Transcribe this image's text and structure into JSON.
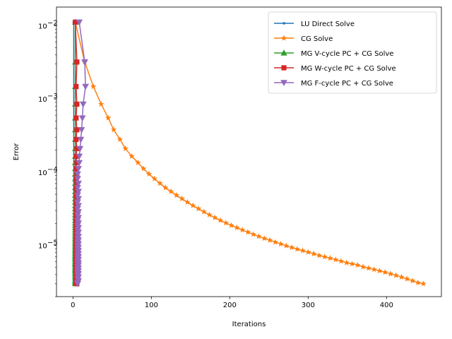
{
  "chart_data": {
    "type": "line",
    "xlabel": "Iterations",
    "ylabel": "Error",
    "y_scale": "log",
    "xlim": [
      -21,
      470
    ],
    "ylim": [
      2e-06,
      0.018
    ],
    "x_ticks": [
      0,
      100,
      200,
      300,
      400
    ],
    "x_tick_labels": [
      "0",
      "100",
      "200",
      "300",
      "400"
    ],
    "y_ticks": [
      1e-05,
      0.0001,
      0.001,
      0.01
    ],
    "y_tick_labels": [
      "10",
      "10",
      "10",
      "10"
    ],
    "y_tick_exponents": [
      "−5",
      "−4",
      "−3",
      "−2"
    ],
    "grid": false,
    "legend_position": "top-right",
    "series": [
      {
        "name": "LU Direct Solve",
        "color": "#1f77b4",
        "marker": "point",
        "points": [
          [
            1,
            0.0112
          ],
          [
            1,
            3e-06
          ]
        ]
      },
      {
        "name": "CG Solve",
        "color": "#ff7f0e",
        "marker": "star",
        "points": [
          [
            3,
            0.0112
          ],
          [
            15,
            0.0032
          ],
          [
            26,
            0.00148
          ],
          [
            36,
            0.00085
          ],
          [
            45,
            0.00055
          ],
          [
            52,
            0.00038
          ],
          [
            60,
            0.00028
          ],
          [
            67,
            0.00021
          ],
          [
            75,
            0.000165
          ],
          [
            83,
            0.000135
          ],
          [
            90,
            0.000112
          ],
          [
            97,
            9.45e-05
          ],
          [
            104,
            8.15e-05
          ],
          [
            111,
            7.05e-05
          ],
          [
            118,
            6.15e-05
          ],
          [
            125,
            5.45e-05
          ],
          [
            132,
            4.85e-05
          ],
          [
            139,
            4.35e-05
          ],
          [
            146,
            3.9e-05
          ],
          [
            153,
            3.5e-05
          ],
          [
            160,
            3.18e-05
          ],
          [
            167,
            2.88e-05
          ],
          [
            174,
            2.62e-05
          ],
          [
            181,
            2.4e-05
          ],
          [
            188,
            2.2e-05
          ],
          [
            195,
            2.03e-05
          ],
          [
            202,
            1.88e-05
          ],
          [
            209,
            1.75e-05
          ],
          [
            216,
            1.63e-05
          ],
          [
            223,
            1.52e-05
          ],
          [
            230,
            1.42e-05
          ],
          [
            237,
            1.33e-05
          ],
          [
            244,
            1.25e-05
          ],
          [
            251,
            1.18e-05
          ],
          [
            258,
            1.11e-05
          ],
          [
            265,
            1.05e-05
          ],
          [
            272,
            9.9e-06
          ],
          [
            279,
            9.4e-06
          ],
          [
            286,
            8.9e-06
          ],
          [
            293,
            8.5e-06
          ],
          [
            300,
            8.1e-06
          ],
          [
            307,
            7.7e-06
          ],
          [
            314,
            7.3e-06
          ],
          [
            321,
            7e-06
          ],
          [
            328,
            6.7e-06
          ],
          [
            335,
            6.4e-06
          ],
          [
            342,
            6.1e-06
          ],
          [
            349,
            5.8e-06
          ],
          [
            356,
            5.6e-06
          ],
          [
            363,
            5.4e-06
          ],
          [
            370,
            5.1e-06
          ],
          [
            377,
            4.9e-06
          ],
          [
            384,
            4.7e-06
          ],
          [
            391,
            4.5e-06
          ],
          [
            398,
            4.3e-06
          ],
          [
            405,
            4.1e-06
          ],
          [
            412,
            3.9e-06
          ],
          [
            419,
            3.7e-06
          ],
          [
            426,
            3.5e-06
          ],
          [
            433,
            3.3e-06
          ],
          [
            440,
            3.1e-06
          ],
          [
            447,
            3e-06
          ]
        ]
      },
      {
        "name": "MG V-cycle PC + CG Solve",
        "color": "#2ca02c",
        "marker": "triangle-up",
        "points": [
          [
            3,
            0.0112
          ],
          [
            3,
            0.0032
          ],
          [
            3,
            0.00148
          ],
          [
            3,
            0.00085
          ],
          [
            3,
            0.00055
          ],
          [
            3,
            0.00038
          ],
          [
            3,
            0.00028
          ],
          [
            3,
            0.00021
          ],
          [
            3,
            0.000165
          ],
          [
            3,
            0.000135
          ],
          [
            3,
            0.000112
          ],
          [
            3,
            9.45e-05
          ],
          [
            3,
            8.15e-05
          ],
          [
            3,
            7.05e-05
          ],
          [
            3,
            6.15e-05
          ],
          [
            3,
            5.45e-05
          ],
          [
            3,
            4.85e-05
          ],
          [
            3,
            4.35e-05
          ],
          [
            3,
            3.9e-05
          ],
          [
            3,
            3.5e-05
          ],
          [
            3,
            3.18e-05
          ],
          [
            3,
            2.88e-05
          ],
          [
            3,
            2.62e-05
          ],
          [
            3,
            2.4e-05
          ],
          [
            3,
            2.2e-05
          ],
          [
            3,
            2.03e-05
          ],
          [
            3,
            1.88e-05
          ],
          [
            3,
            1.75e-05
          ],
          [
            3,
            1.63e-05
          ],
          [
            3,
            1.52e-05
          ],
          [
            3,
            1.42e-05
          ],
          [
            3,
            1.33e-05
          ],
          [
            3,
            1.25e-05
          ],
          [
            3,
            1.18e-05
          ],
          [
            3,
            1.11e-05
          ],
          [
            3,
            1.05e-05
          ],
          [
            3,
            9.9e-06
          ],
          [
            3,
            9.4e-06
          ],
          [
            3,
            8.9e-06
          ],
          [
            3,
            8.5e-06
          ],
          [
            3,
            8.1e-06
          ],
          [
            3,
            7.7e-06
          ],
          [
            3,
            7.3e-06
          ],
          [
            3,
            7e-06
          ],
          [
            3,
            6.7e-06
          ],
          [
            3,
            6.4e-06
          ],
          [
            3,
            6.1e-06
          ],
          [
            3,
            5.8e-06
          ],
          [
            3,
            5.6e-06
          ],
          [
            3,
            5.4e-06
          ],
          [
            3,
            5.1e-06
          ],
          [
            3,
            4.9e-06
          ],
          [
            3,
            4.7e-06
          ],
          [
            3,
            4.5e-06
          ],
          [
            3,
            4.3e-06
          ],
          [
            3,
            4.1e-06
          ],
          [
            3,
            3.9e-06
          ],
          [
            3,
            3.7e-06
          ],
          [
            3,
            3.5e-06
          ],
          [
            3,
            3.3e-06
          ],
          [
            3,
            3.1e-06
          ],
          [
            3,
            3e-06
          ]
        ]
      },
      {
        "name": "MG W-cycle PC + CG Solve",
        "color": "#d62728",
        "marker": "square",
        "points": [
          [
            3,
            0.0112
          ],
          [
            5,
            0.0032
          ],
          [
            4,
            0.00148
          ],
          [
            5,
            0.00085
          ],
          [
            4,
            0.00055
          ],
          [
            5,
            0.00038
          ],
          [
            4,
            0.00028
          ],
          [
            5,
            0.00021
          ],
          [
            4,
            0.000165
          ],
          [
            5,
            0.000135
          ],
          [
            4,
            0.000112
          ],
          [
            5,
            9.45e-05
          ],
          [
            4,
            8.15e-05
          ],
          [
            5,
            7.05e-05
          ],
          [
            4,
            6.15e-05
          ],
          [
            5,
            5.45e-05
          ],
          [
            4,
            4.85e-05
          ],
          [
            5,
            4.35e-05
          ],
          [
            4,
            3.9e-05
          ],
          [
            5,
            3.5e-05
          ],
          [
            4,
            3.18e-05
          ],
          [
            5,
            2.88e-05
          ],
          [
            4,
            2.62e-05
          ],
          [
            5,
            2.4e-05
          ],
          [
            4,
            2.2e-05
          ],
          [
            5,
            2.03e-05
          ],
          [
            4,
            1.88e-05
          ],
          [
            5,
            1.75e-05
          ],
          [
            4,
            1.63e-05
          ],
          [
            5,
            1.52e-05
          ],
          [
            4,
            1.42e-05
          ],
          [
            5,
            1.33e-05
          ],
          [
            4,
            1.25e-05
          ],
          [
            5,
            1.18e-05
          ],
          [
            4,
            1.11e-05
          ],
          [
            5,
            1.05e-05
          ],
          [
            4,
            9.9e-06
          ],
          [
            5,
            9.4e-06
          ],
          [
            4,
            8.9e-06
          ],
          [
            5,
            8.5e-06
          ],
          [
            4,
            8.1e-06
          ],
          [
            5,
            7.7e-06
          ],
          [
            4,
            7.3e-06
          ],
          [
            5,
            7e-06
          ],
          [
            4,
            6.7e-06
          ],
          [
            5,
            6.4e-06
          ],
          [
            4,
            6.1e-06
          ],
          [
            5,
            5.8e-06
          ],
          [
            4,
            5.6e-06
          ],
          [
            5,
            5.4e-06
          ],
          [
            4,
            5.1e-06
          ],
          [
            5,
            4.9e-06
          ],
          [
            4,
            4.7e-06
          ],
          [
            5,
            4.5e-06
          ],
          [
            4,
            4.3e-06
          ],
          [
            5,
            4.1e-06
          ],
          [
            4,
            3.9e-06
          ],
          [
            5,
            3.7e-06
          ],
          [
            4,
            3.5e-06
          ],
          [
            5,
            3.3e-06
          ],
          [
            4,
            3.1e-06
          ],
          [
            5,
            3e-06
          ]
        ]
      },
      {
        "name": "MG F-cycle PC + CG Solve",
        "color": "#9467bd",
        "marker": "triangle-down",
        "points": [
          [
            8,
            0.0112
          ],
          [
            15,
            0.0032
          ],
          [
            16,
            0.00148
          ],
          [
            13,
            0.00085
          ],
          [
            12,
            0.00055
          ],
          [
            11,
            0.00038
          ],
          [
            10,
            0.00028
          ],
          [
            9,
            0.00021
          ],
          [
            8,
            0.000165
          ],
          [
            8,
            0.000135
          ],
          [
            7,
            0.000112
          ],
          [
            6,
            9.45e-05
          ],
          [
            6,
            8.15e-05
          ],
          [
            7,
            7.05e-05
          ],
          [
            6,
            6.15e-05
          ],
          [
            7,
            5.45e-05
          ],
          [
            6,
            4.85e-05
          ],
          [
            7,
            4.35e-05
          ],
          [
            6,
            3.9e-05
          ],
          [
            7,
            3.5e-05
          ],
          [
            6,
            3.18e-05
          ],
          [
            7,
            2.88e-05
          ],
          [
            6,
            2.62e-05
          ],
          [
            7,
            2.4e-05
          ],
          [
            6,
            2.2e-05
          ],
          [
            7,
            2.03e-05
          ],
          [
            6,
            1.88e-05
          ],
          [
            7,
            1.75e-05
          ],
          [
            6,
            1.63e-05
          ],
          [
            7,
            1.52e-05
          ],
          [
            6,
            1.42e-05
          ],
          [
            7,
            1.33e-05
          ],
          [
            6,
            1.25e-05
          ],
          [
            7,
            1.18e-05
          ],
          [
            6,
            1.11e-05
          ],
          [
            7,
            1.05e-05
          ],
          [
            6,
            9.9e-06
          ],
          [
            7,
            9.4e-06
          ],
          [
            6,
            8.9e-06
          ],
          [
            7,
            8.5e-06
          ],
          [
            6,
            8.1e-06
          ],
          [
            7,
            7.7e-06
          ],
          [
            6,
            7.3e-06
          ],
          [
            7,
            7e-06
          ],
          [
            6,
            6.7e-06
          ],
          [
            7,
            6.4e-06
          ],
          [
            6,
            6.1e-06
          ],
          [
            7,
            5.8e-06
          ],
          [
            6,
            5.6e-06
          ],
          [
            7,
            5.4e-06
          ],
          [
            6,
            5.1e-06
          ],
          [
            7,
            4.9e-06
          ],
          [
            6,
            4.7e-06
          ],
          [
            7,
            4.5e-06
          ],
          [
            6,
            4.3e-06
          ],
          [
            7,
            4.1e-06
          ],
          [
            6,
            3.9e-06
          ],
          [
            7,
            3.7e-06
          ],
          [
            6,
            3.5e-06
          ],
          [
            7,
            3.3e-06
          ],
          [
            6,
            3.1e-06
          ],
          [
            6,
            3e-06
          ]
        ]
      }
    ]
  }
}
